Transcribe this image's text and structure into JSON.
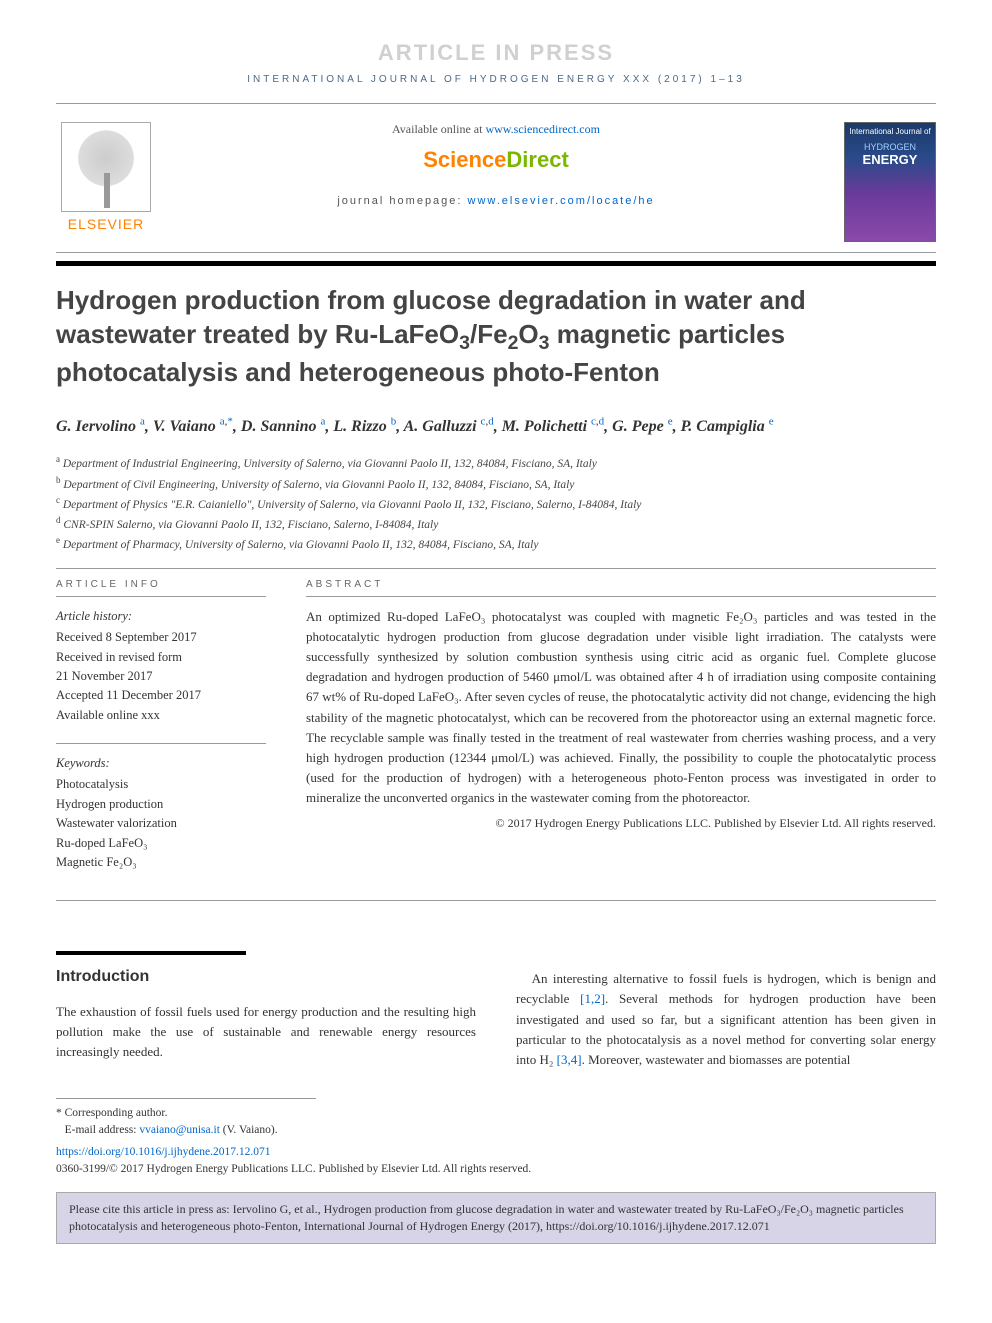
{
  "banner": "ARTICLE IN PRESS",
  "journal_header": "INTERNATIONAL JOURNAL OF HYDROGEN ENERGY XXX (2017) 1–13",
  "header": {
    "available_prefix": "Available online at ",
    "available_url": "www.sciencedirect.com",
    "sd_science": "Science",
    "sd_direct": "Direct",
    "homepage_prefix": "journal homepage: ",
    "homepage_url": "www.elsevier.com/locate/he",
    "elsevier": "ELSEVIER",
    "cover_top": "International Journal of",
    "cover_hydrogen": "HYDROGEN",
    "cover_energy": "ENERGY"
  },
  "title_parts": {
    "p1": "Hydrogen production from glucose degradation in water and wastewater treated by Ru-LaFeO",
    "p2": "/Fe",
    "p3": "O",
    "p4": " magnetic particles photocatalysis and heterogeneous photo-Fenton"
  },
  "authors_html": "G. Iervolino|a|, V. Vaiano|a,*|, D. Sannino|a|, L. Rizzo|b|, A. Galluzzi|c,d|, M. Polichetti|c,d|, G. Pepe|e|, P. Campiglia|e|",
  "authors": [
    {
      "name": "G. Iervolino",
      "sup": "a"
    },
    {
      "name": "V. Vaiano",
      "sup": "a,*"
    },
    {
      "name": "D. Sannino",
      "sup": "a"
    },
    {
      "name": "L. Rizzo",
      "sup": "b"
    },
    {
      "name": "A. Galluzzi",
      "sup": "c,d"
    },
    {
      "name": "M. Polichetti",
      "sup": "c,d"
    },
    {
      "name": "G. Pepe",
      "sup": "e"
    },
    {
      "name": "P. Campiglia",
      "sup": "e"
    }
  ],
  "affiliations": [
    {
      "key": "a",
      "text": "Department of Industrial Engineering, University of Salerno, via Giovanni Paolo II, 132, 84084, Fisciano, SA, Italy"
    },
    {
      "key": "b",
      "text": "Department of Civil Engineering, University of Salerno, via Giovanni Paolo II, 132, 84084, Fisciano, SA, Italy"
    },
    {
      "key": "c",
      "text": "Department of Physics \"E.R. Caianiello\", University of Salerno, via Giovanni Paolo II, 132, Fisciano, Salerno, I-84084, Italy"
    },
    {
      "key": "d",
      "text": "CNR-SPIN Salerno, via Giovanni Paolo II, 132, Fisciano, Salerno, I-84084, Italy"
    },
    {
      "key": "e",
      "text": "Department of Pharmacy, University of Salerno, via Giovanni Paolo II, 132, 84084, Fisciano, SA, Italy"
    }
  ],
  "article_info_label": "ARTICLE INFO",
  "abstract_label": "ABSTRACT",
  "history": {
    "heading": "Article history:",
    "lines": [
      "Received 8 September 2017",
      "Received in revised form",
      "21 November 2017",
      "Accepted 11 December 2017",
      "Available online xxx"
    ]
  },
  "keywords": {
    "heading": "Keywords:",
    "items": [
      "Photocatalysis",
      "Hydrogen production",
      "Wastewater valorization",
      "Ru-doped LaFeO₃",
      "Magnetic Fe₂O₃"
    ]
  },
  "abstract_text": "An optimized Ru-doped LaFeO₃ photocatalyst was coupled with magnetic Fe₂O₃ particles and was tested in the photocatalytic hydrogen production from glucose degradation under visible light irradiation. The catalysts were successfully synthesized by solution combustion synthesis using citric acid as organic fuel. Complete glucose degradation and hydrogen production of 5460 μmol/L was obtained after 4 h of irradiation using composite containing 67 wt% of Ru-doped LaFeO₃. After seven cycles of reuse, the photocatalytic activity did not change, evidencing the high stability of the magnetic photocatalyst, which can be recovered from the photoreactor using an external magnetic force. The recyclable sample was finally tested in the treatment of real wastewater from cherries washing process, and a very high hydrogen production (12344 μmol/L) was achieved. Finally, the possibility to couple the photocatalytic process (used for the production of hydrogen) with a heterogeneous photo-Fenton process was investigated in order to mineralize the unconverted organics in the wastewater coming from the photoreactor.",
  "abstract_copyright": "© 2017 Hydrogen Energy Publications LLC. Published by Elsevier Ltd. All rights reserved.",
  "intro": {
    "heading": "Introduction",
    "left": "The exhaustion of fossil fuels used for energy production and the resulting high pollution make the use of sustainable and renewable energy resources increasingly needed.",
    "right_p1": "An interesting alternative to fossil fuels is hydrogen, which is benign and recyclable ",
    "right_ref1": "[1,2]",
    "right_p2": ". Several methods for hydrogen production have been investigated and used so far, but a significant attention has been given in particular to the photocatalysis as a novel method for converting solar energy into H₂ ",
    "right_ref2": "[3,4]",
    "right_p3": ". Moreover, wastewater and biomasses are potential"
  },
  "footnotes": {
    "corr": "* Corresponding author.",
    "email_label": "E-mail address: ",
    "email": "vvaiano@unisa.it",
    "email_suffix": " (V. Vaiano).",
    "doi": "https://doi.org/10.1016/j.ijhydene.2017.12.071",
    "issn_line": "0360-3199/© 2017 Hydrogen Energy Publications LLC. Published by Elsevier Ltd. All rights reserved."
  },
  "cite_box": "Please cite this article in press as: Iervolino G, et al., Hydrogen production from glucose degradation in water and wastewater treated by Ru-LaFeO₃/Fe₂O₃ magnetic particles photocatalysis and heterogeneous photo-Fenton, International Journal of Hydrogen Energy (2017), https://doi.org/10.1016/j.ijhydene.2017.12.071",
  "colors": {
    "link": "#0066cc",
    "elsevier_orange": "#ff8200",
    "sd_green": "#7ab800",
    "banner_gray": "#d0d0d0",
    "cite_bg": "#d8d4e8"
  }
}
